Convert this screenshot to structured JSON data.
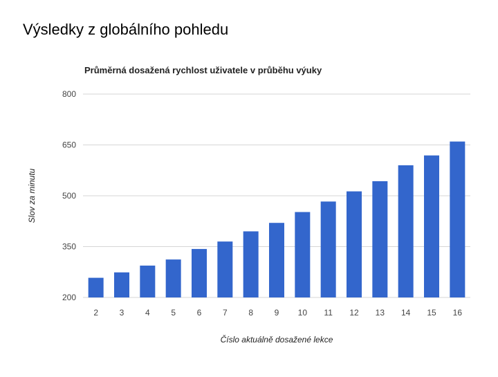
{
  "slide": {
    "title": "Výsledky z globálního pohledu"
  },
  "chart_data": {
    "type": "bar",
    "title": "Průměrná dosažená rychlost uživatele v průběhu výuky",
    "xlabel": "Číslo aktuálně dosažené lekce",
    "ylabel": "Slov za minutu",
    "ylim": [
      200,
      800
    ],
    "yticks": [
      200,
      350,
      500,
      650,
      800
    ],
    "grid": true,
    "categories": [
      "2",
      "3",
      "4",
      "5",
      "6",
      "7",
      "8",
      "9",
      "10",
      "11",
      "12",
      "13",
      "14",
      "15",
      "16"
    ],
    "values": [
      258,
      274,
      294,
      312,
      343,
      365,
      395,
      420,
      452,
      483,
      513,
      543,
      590,
      619,
      660
    ],
    "bar_color": "#3366cc"
  }
}
